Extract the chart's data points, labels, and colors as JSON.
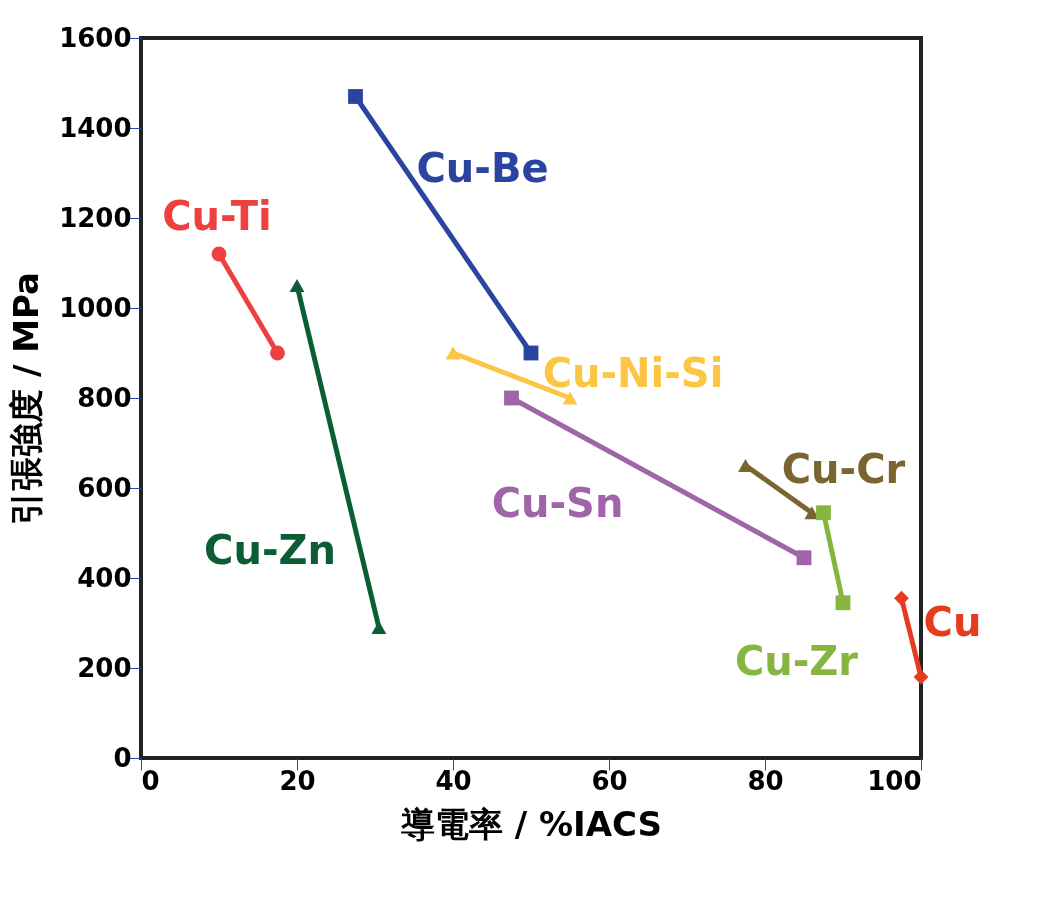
{
  "chart_data": {
    "type": "line",
    "xlabel": "導電率 / %IACS",
    "ylabel": "引張強度 / MPa",
    "xlim": [
      0,
      100
    ],
    "xticks": [
      0,
      20,
      40,
      60,
      80,
      100
    ],
    "ylim": [
      0,
      1600
    ],
    "yticks": [
      0,
      200,
      400,
      600,
      800,
      1000,
      1200,
      1400,
      1600
    ],
    "grid": false,
    "series": [
      {
        "name": "Cu-Ti",
        "color": "#ee4040",
        "marker": "circle",
        "x": [
          10,
          17.5
        ],
        "values": [
          1120,
          900
        ]
      },
      {
        "name": "Cu-Be",
        "color": "#2a44a0",
        "marker": "square",
        "x": [
          27.5,
          50
        ],
        "values": [
          1470,
          900
        ]
      },
      {
        "name": "Cu-Zn",
        "color": "#0b5e34",
        "marker": "triangle",
        "x": [
          20,
          30.5
        ],
        "values": [
          1050,
          290
        ]
      },
      {
        "name": "Cu-Ni-Si",
        "color": "#fcc642",
        "marker": "triangle",
        "x": [
          40,
          55
        ],
        "values": [
          900,
          800
        ]
      },
      {
        "name": "Cu-Sn",
        "color": "#a064a8",
        "marker": "square",
        "x": [
          47.5,
          85
        ],
        "values": [
          800,
          445
        ]
      },
      {
        "name": "Cu-Cr",
        "color": "#7a6430",
        "marker": "triangle",
        "x": [
          77.5,
          86
        ],
        "values": [
          650,
          545
        ]
      },
      {
        "name": "Cu-Zr",
        "color": "#86b640",
        "marker": "square",
        "x": [
          87.5,
          90
        ],
        "values": [
          545,
          345
        ]
      },
      {
        "name": "Cu",
        "color": "#e63c1e",
        "marker": "diamond",
        "x": [
          97.5,
          100
        ],
        "values": [
          355,
          180
        ]
      }
    ]
  }
}
